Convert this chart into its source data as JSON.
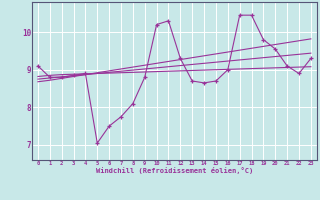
{
  "bg_color": "#c8e8e8",
  "line_color": "#993399",
  "xlabel": "Windchill (Refroidissement éolien,°C)",
  "x_values": [
    0,
    1,
    2,
    3,
    4,
    5,
    6,
    7,
    8,
    9,
    10,
    11,
    12,
    13,
    14,
    15,
    16,
    17,
    18,
    19,
    20,
    21,
    22,
    23
  ],
  "series1": [
    9.1,
    8.8,
    8.8,
    8.85,
    8.9,
    7.05,
    7.5,
    7.75,
    8.1,
    8.8,
    10.2,
    10.3,
    9.3,
    8.7,
    8.65,
    8.7,
    9.0,
    10.45,
    10.45,
    9.8,
    9.55,
    9.1,
    8.9,
    9.3
  ],
  "trend1": [
    8.82,
    8.85,
    8.87,
    8.88,
    8.89,
    8.9,
    8.91,
    8.92,
    8.93,
    8.94,
    8.95,
    8.96,
    8.97,
    8.98,
    8.99,
    9.0,
    9.01,
    9.02,
    9.03,
    9.04,
    9.05,
    9.06,
    9.07,
    9.08
  ],
  "trend2": [
    8.75,
    8.78,
    8.81,
    8.84,
    8.87,
    8.9,
    8.93,
    8.96,
    8.99,
    9.02,
    9.05,
    9.08,
    9.11,
    9.14,
    9.17,
    9.2,
    9.23,
    9.26,
    9.29,
    9.32,
    9.35,
    9.38,
    9.41,
    9.44
  ],
  "trend3": [
    8.68,
    8.72,
    8.77,
    8.82,
    8.87,
    8.92,
    8.97,
    9.02,
    9.07,
    9.12,
    9.17,
    9.22,
    9.27,
    9.32,
    9.37,
    9.42,
    9.47,
    9.52,
    9.57,
    9.62,
    9.67,
    9.72,
    9.77,
    9.82
  ],
  "ylim": [
    6.6,
    10.8
  ],
  "xlim": [
    -0.5,
    23.5
  ],
  "yticks": [
    7,
    8,
    9,
    10
  ],
  "xticks": [
    0,
    1,
    2,
    3,
    4,
    5,
    6,
    7,
    8,
    9,
    10,
    11,
    12,
    13,
    14,
    15,
    16,
    17,
    18,
    19,
    20,
    21,
    22,
    23
  ]
}
